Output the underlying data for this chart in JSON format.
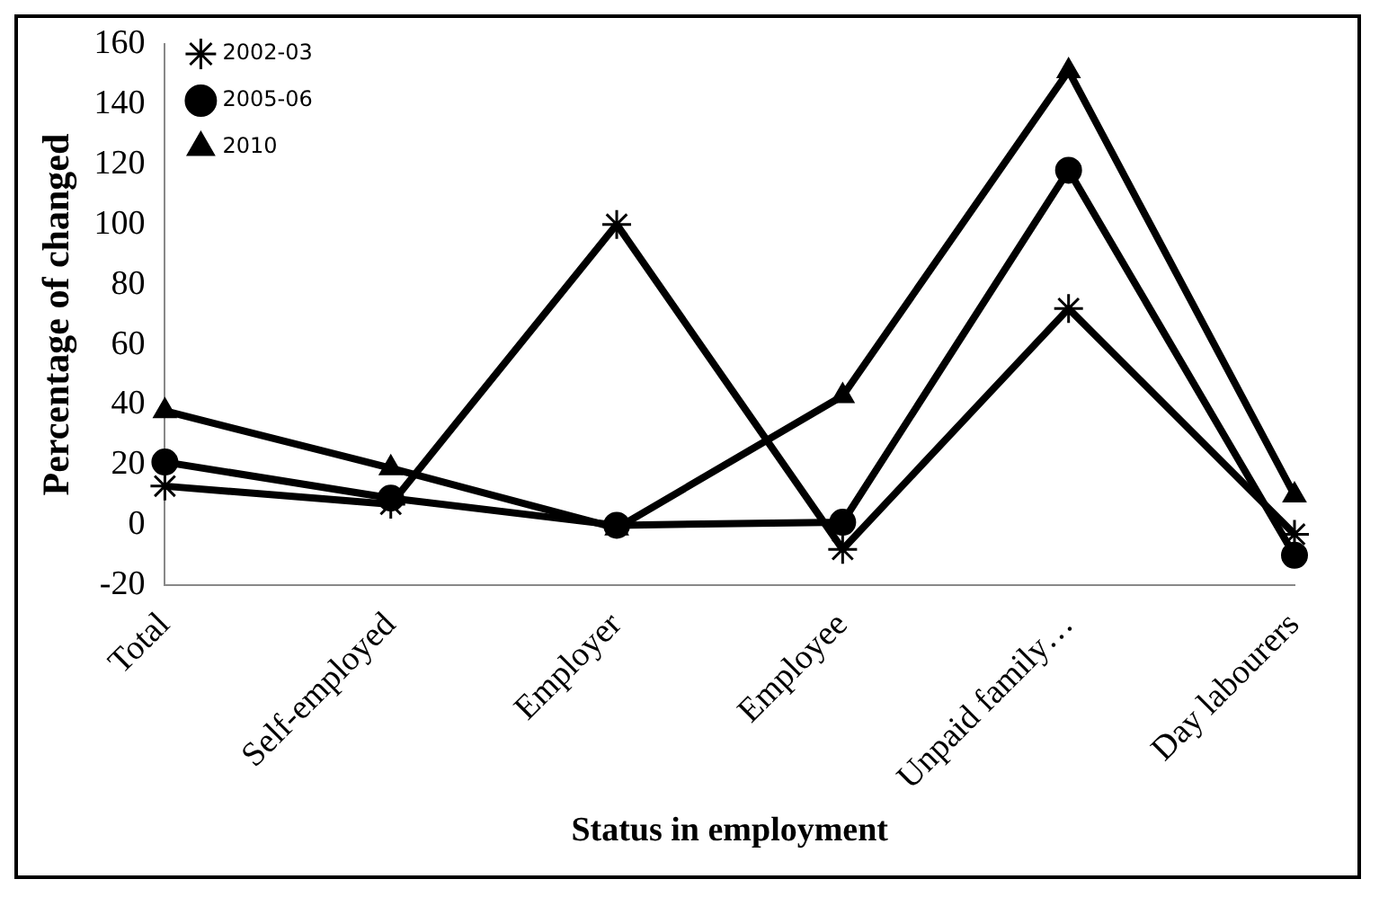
{
  "chart_data": {
    "type": "line",
    "xlabel": "Status in employment",
    "ylabel": "Percentage of changed",
    "categories": [
      "Total",
      "Self-employed",
      "Employer",
      "Employee",
      "Unpaid family…",
      "Day labourers"
    ],
    "series": [
      {
        "name": "2002-03",
        "color": "#000000",
        "marker": "cross",
        "values": [
          13,
          7,
          100,
          -8,
          72,
          -3
        ]
      },
      {
        "name": "2005-06",
        "color": "#000000",
        "marker": "circle",
        "values": [
          21,
          9,
          0,
          1,
          118,
          -10
        ]
      },
      {
        "name": "2010",
        "color": "#000000",
        "marker": "triangle",
        "values": [
          38,
          19,
          -1,
          43,
          151,
          10
        ]
      }
    ],
    "ylim": [
      -20,
      160
    ],
    "yticks": [
      -20,
      0,
      20,
      40,
      60,
      80,
      100,
      120,
      140,
      160
    ],
    "grid": false,
    "legend": "top left"
  }
}
